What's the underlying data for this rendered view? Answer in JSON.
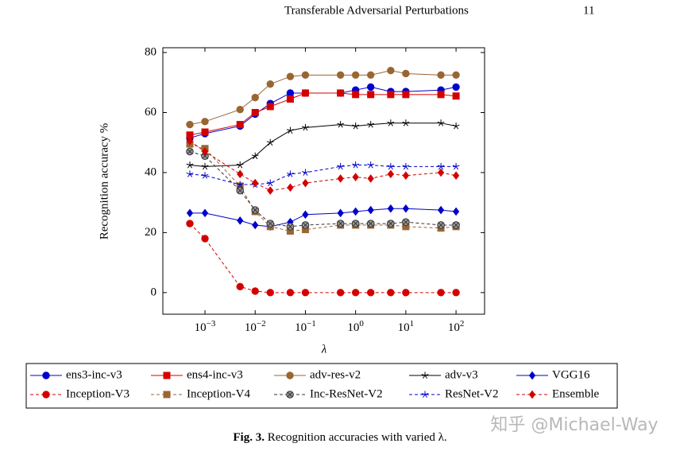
{
  "header": {
    "running_title": "Transferable Adversarial Perturbations",
    "page_number": "11"
  },
  "chart_data": {
    "type": "line",
    "x_label": "λ",
    "y_label": "Recognition accuracy %",
    "log_x": true,
    "x": [
      0.0005,
      0.001,
      0.005,
      0.01,
      0.02,
      0.05,
      0.1,
      0.5,
      1,
      2,
      5,
      10,
      50,
      100
    ],
    "xlim": [
      0.000145,
      370
    ],
    "ylim": [
      -7.2,
      81.6
    ],
    "xticks": [
      {
        "value": 0.001,
        "label": "10",
        "exponent": "−3"
      },
      {
        "value": 0.01,
        "label": "10",
        "exponent": "−2"
      },
      {
        "value": 0.1,
        "label": "10",
        "exponent": "−1"
      },
      {
        "value": 1,
        "label": "10",
        "exponent": "0"
      },
      {
        "value": 10,
        "label": "10",
        "exponent": "1"
      },
      {
        "value": 100,
        "label": "10",
        "exponent": "2"
      }
    ],
    "yticks": [
      0,
      20,
      40,
      60,
      80
    ],
    "series": [
      {
        "name": "ens3-inc-v3",
        "color": "#0000cc",
        "marker": "circle",
        "dashed": false,
        "values": [
          51.5,
          53,
          55.5,
          59.5,
          63,
          66.5,
          66.5,
          66.5,
          67.5,
          68.5,
          67,
          67,
          67.5,
          68.5
        ]
      },
      {
        "name": "ens4-inc-v3",
        "color": "#d40000",
        "marker": "square",
        "dashed": false,
        "values": [
          52.5,
          53.5,
          56,
          60,
          62,
          64.5,
          66.5,
          66.5,
          66,
          66,
          66,
          66,
          66,
          65.5
        ]
      },
      {
        "name": "adv-res-v2",
        "color": "#996633",
        "marker": "circle",
        "dashed": false,
        "values": [
          56,
          57,
          61,
          65,
          69.5,
          72,
          72.5,
          72.5,
          72.5,
          72.5,
          74,
          73,
          72.5,
          72.5
        ]
      },
      {
        "name": "adv-v3",
        "color": "#000000",
        "marker": "star",
        "dashed": false,
        "values": [
          42.5,
          42,
          42.5,
          45.5,
          50,
          54,
          55,
          56,
          55.5,
          56,
          56.5,
          56.5,
          56.5,
          55.5
        ]
      },
      {
        "name": "VGG16",
        "color": "#0000cc",
        "marker": "diamond",
        "dashed": false,
        "values": [
          26.5,
          26.5,
          24,
          22.5,
          22,
          23.5,
          26,
          26.5,
          27,
          27.5,
          28,
          28,
          27.5,
          27
        ]
      },
      {
        "name": "Inception-V3",
        "color": "#d40000",
        "marker": "circle",
        "dashed": true,
        "values": [
          23,
          18,
          2,
          0.5,
          0,
          0,
          0,
          0,
          0,
          0,
          0,
          0,
          0,
          0
        ]
      },
      {
        "name": "Inception-V4",
        "color": "#996633",
        "marker": "square",
        "dashed": true,
        "values": [
          49.5,
          48,
          35.5,
          27,
          22,
          20.5,
          21,
          22.5,
          22.5,
          22.5,
          22.5,
          22,
          21.5,
          22
        ]
      },
      {
        "name": "Inc-ResNet-V2",
        "color": "#333333",
        "marker": "otimes",
        "dashed": true,
        "values": [
          47,
          45.5,
          34,
          27.5,
          23,
          22,
          22.5,
          23,
          23,
          23,
          23,
          23.5,
          22.5,
          22.5
        ]
      },
      {
        "name": "ResNet-V2",
        "color": "#0000cc",
        "marker": "star",
        "dashed": true,
        "values": [
          39.5,
          39,
          36,
          36,
          36.5,
          39.5,
          40,
          42,
          42.5,
          42.5,
          42,
          42,
          42,
          42
        ]
      },
      {
        "name": "Ensemble",
        "color": "#d40000",
        "marker": "diamond",
        "dashed": true,
        "values": [
          50.5,
          47,
          39.5,
          36.5,
          34,
          35,
          36.5,
          38,
          38.5,
          38,
          39.5,
          39,
          40,
          39
        ]
      }
    ]
  },
  "caption": {
    "label": "Fig. 3.",
    "text": "Recognition accuracies with varied λ."
  },
  "watermark": "知乎 @Michael-Way"
}
